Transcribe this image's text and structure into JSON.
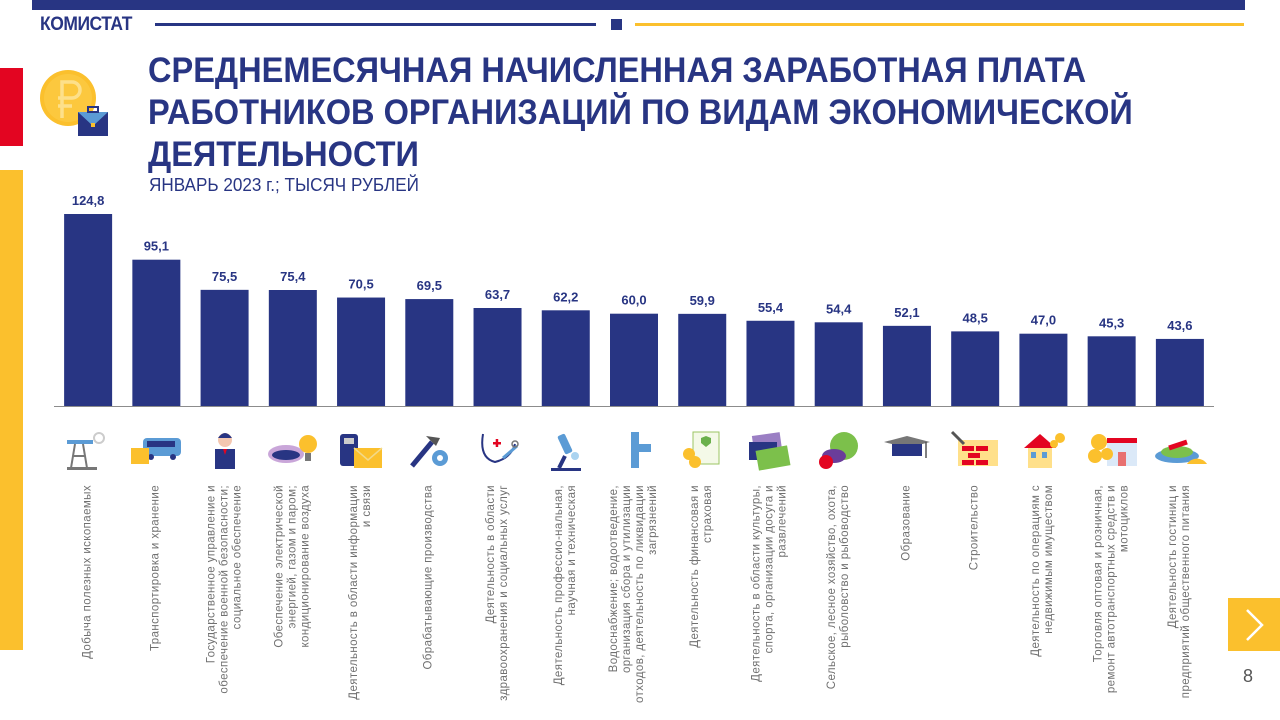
{
  "header": {
    "brand": "КОМИСТАТ",
    "title": "СРЕДНЕМЕСЯЧНАЯ НАЧИСЛЕННАЯ ЗАРАБОТНАЯ ПЛАТА РАБОТНИКОВ ОРГАНИЗАЦИЙ ПО ВИДАМ ЭКОНОМИЧЕСКОЙ ДЕЯТЕЛЬНОСТИ",
    "subtitle": "ЯНВАРЬ 2023 г.; ТЫСЯЧ РУБЛЕЙ",
    "logo_icon": "ruble-coin-briefcase-icon"
  },
  "colors": {
    "primary": "#283583",
    "accent_yellow": "#fbc02d",
    "accent_red": "#e30521",
    "label_gray": "#707070"
  },
  "chart_data": {
    "type": "bar",
    "title": "СРЕДНЕМЕСЯЧНАЯ НАЧИСЛЕННАЯ ЗАРАБОТНАЯ ПЛАТА РАБОТНИКОВ ОРГАНИЗАЦИЙ ПО ВИДАМ ЭКОНОМИЧЕСКОЙ ДЕЯТЕЛЬНОСТИ",
    "subtitle": "ЯНВАРЬ 2023 г.; ТЫСЯЧ РУБЛЕЙ",
    "xlabel": "",
    "ylabel": "тысяч рублей",
    "ylim": [
      0,
      130
    ],
    "grid": false,
    "legend": "none",
    "categories": [
      "Добыча полезных ископаемых",
      "Транспортировка и хранение",
      "Государственное управление и обеспечение военной безопасности; социальное обеспечение",
      "Обеспечение электрической энергией, газом и паром; кондиционирование воздуха",
      "Деятельность в области информации и связи",
      "Обрабатывающие производства",
      "Деятельность в области здравоохранения и социальных услуг",
      "Деятельность профессио-нальная, научная и техническая",
      "Водоснабжение; водоотведение, организация сбора и утилизации отходов, деятельность по ликвидации загрязнений",
      "Деятельность финансовая и страховая",
      "Деятельность в области культуры, спорта, организации досуга и развлечений",
      "Сельское, лесное хозяйство, охота, рыболовство и рыбоводство",
      "Образование",
      "Строительство",
      "Деятельность по операциям с недвижимым имуществом",
      "Торговля оптовая и розничная, ремонт автотранспортных средств и мотоциклов",
      "Деятельность гостиниц и предприятий общественного питания"
    ],
    "values": [
      124.8,
      95.1,
      75.5,
      75.4,
      70.5,
      69.5,
      63.7,
      62.2,
      60.0,
      59.9,
      55.4,
      54.4,
      52.1,
      48.5,
      47.0,
      45.3,
      43.6
    ],
    "value_labels": [
      "124,8",
      "95,1",
      "75,5",
      "75,4",
      "70,5",
      "69,5",
      "63,7",
      "62,2",
      "60,0",
      "59,9",
      "55,4",
      "54,4",
      "52,1",
      "48,5",
      "47,0",
      "45,3",
      "43,6"
    ],
    "category_icons": [
      "oil-pump-icon",
      "bus-cargo-icon",
      "official-person-icon",
      "gas-lightbulb-icon",
      "phone-envelope-icon",
      "hammer-gear-icon",
      "stethoscope-syringe-icon",
      "microscope-icon",
      "water-pipe-icon",
      "document-coins-icon",
      "tickets-icon",
      "vegetables-icon",
      "graduation-cap-icon",
      "brick-wall-icon",
      "house-coins-icon",
      "shop-coins-icon",
      "food-dish-icon"
    ],
    "bar_color": "#283583"
  },
  "navigation": {
    "next_icon": "chevron-right-icon",
    "page_number": "8"
  }
}
